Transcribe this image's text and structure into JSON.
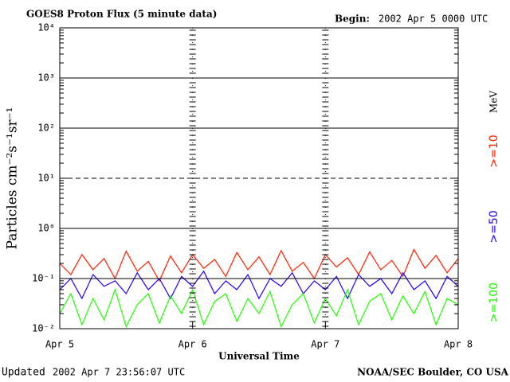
{
  "chart_data": {
    "type": "line",
    "title": "GOES8 Proton Flux (5 minute data)",
    "begin_label": "Begin:",
    "begin_value": "2002 Apr 5 0000 UTC",
    "y_label": "Particles cm⁻²s⁻¹sr⁻¹",
    "x_label": "Universal Time",
    "updated_label": "Updated",
    "updated_value": "2002 Apr  7 23:56:07 UTC",
    "credit": "NOAA/SEC Boulder, CO USA",
    "legend_unit": "MeV",
    "log_scale": true,
    "grid": true,
    "threshold": 10,
    "x": [
      0,
      2,
      4,
      6,
      8,
      10,
      12,
      14,
      16,
      18,
      20,
      22,
      24,
      26,
      28,
      30,
      32,
      34,
      36,
      38,
      40,
      42,
      44,
      46,
      48,
      50,
      52,
      54,
      56,
      58,
      60,
      62,
      64,
      66,
      68,
      70,
      72
    ],
    "xlim": [
      0,
      72
    ],
    "xticks": [
      {
        "value": 0,
        "label": "Apr 5"
      },
      {
        "value": 24,
        "label": "Apr 6"
      },
      {
        "value": 48,
        "label": "Apr 7"
      },
      {
        "value": 72,
        "label": "Apr 8"
      }
    ],
    "ylim": [
      0.01,
      10000
    ],
    "yticks": [
      {
        "value": 0.01,
        "label": "10⁻²"
      },
      {
        "value": 0.1,
        "label": "10⁻¹"
      },
      {
        "value": 1,
        "label": "10⁰"
      },
      {
        "value": 10,
        "label": "10¹"
      },
      {
        "value": 100,
        "label": "10²"
      },
      {
        "value": 1000,
        "label": "10³"
      },
      {
        "value": 10000,
        "label": "10⁴"
      }
    ],
    "series": [
      {
        "name": ">=10",
        "color": "#ff2000",
        "values": [
          0.2,
          0.12,
          0.3,
          0.15,
          0.25,
          0.1,
          0.35,
          0.14,
          0.22,
          0.09,
          0.28,
          0.13,
          0.3,
          0.16,
          0.24,
          0.11,
          0.33,
          0.15,
          0.27,
          0.12,
          0.36,
          0.14,
          0.21,
          0.1,
          0.3,
          0.17,
          0.26,
          0.12,
          0.34,
          0.15,
          0.23,
          0.11,
          0.38,
          0.16,
          0.29,
          0.13,
          0.25
        ]
      },
      {
        "name": ">=50",
        "color": "#2000ff",
        "values": [
          0.06,
          0.1,
          0.04,
          0.12,
          0.07,
          0.09,
          0.05,
          0.13,
          0.06,
          0.1,
          0.04,
          0.11,
          0.07,
          0.14,
          0.05,
          0.09,
          0.06,
          0.12,
          0.04,
          0.1,
          0.07,
          0.13,
          0.05,
          0.09,
          0.06,
          0.11,
          0.04,
          0.12,
          0.07,
          0.1,
          0.05,
          0.13,
          0.06,
          0.09,
          0.04,
          0.11,
          0.07
        ]
      },
      {
        "name": ">=100",
        "color": "#20ff00",
        "values": [
          0.02,
          0.05,
          0.012,
          0.04,
          0.015,
          0.06,
          0.011,
          0.03,
          0.05,
          0.013,
          0.045,
          0.02,
          0.06,
          0.012,
          0.035,
          0.05,
          0.014,
          0.04,
          0.02,
          0.055,
          0.011,
          0.03,
          0.05,
          0.013,
          0.04,
          0.018,
          0.06,
          0.012,
          0.035,
          0.05,
          0.015,
          0.045,
          0.02,
          0.055,
          0.012,
          0.04,
          0.03
        ]
      }
    ]
  }
}
